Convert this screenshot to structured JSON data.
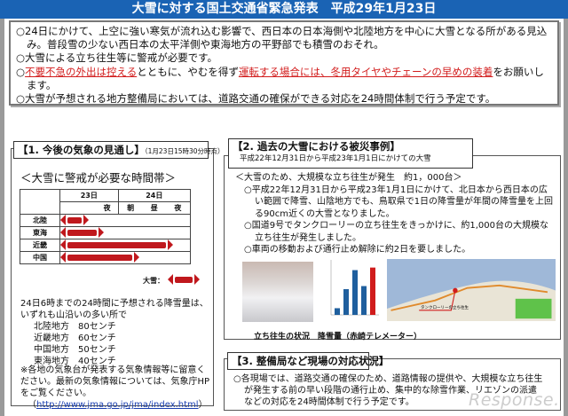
{
  "title": "大雪に対する国土交通省緊急発表　平成29年1月23日",
  "notice": {
    "p1": "○24日にかけて、上空に強い寒気が流れ込む影響で、西日本の日本海側や北陸地方を中心に大雪となる所がある見込み。普段雪の少ない西日本の太平洋側や東海地方の平野部でも積雪のおそれ。",
    "p2": "○大雪による立ち往生等に警戒が必要です。",
    "p3a": "○",
    "p3b": "不要不急の外出は控える",
    "p3c": "とともに、やむを得ず",
    "p3d": "運転する場合には、冬用タイヤやチェーンの早めの装着",
    "p3e": "をお願いします。",
    "p4": "○大雪が予想される地方整備局においては、道路交通の確保ができる対応を24時間体制で行う予定です。"
  },
  "section1": {
    "title": "【1. 今後の気象の見通し】",
    "time": "（1月23日15時30分時点）",
    "heading": "＜大雪に警戒が必要な時間帯＞",
    "table": {
      "day1": "23日",
      "day2": "24日",
      "p_night": "夜",
      "p_morning": "朝",
      "p_noon": "昼",
      "p_night2": "夜",
      "rows": [
        {
          "region": "北陸"
        },
        {
          "region": "東海"
        },
        {
          "region": "近畿"
        },
        {
          "region": "中国"
        }
      ]
    },
    "legend": "大雪：",
    "amount_intro": "24日6時までの24時間に予想される降雪量は、いずれも山沿いの多い所で",
    "amounts": [
      "北陸地方　80センチ",
      "近畿地方　60センチ",
      "中国地方　50センチ",
      "東海地方　40センチ"
    ],
    "note": "※各地の気象台が発表する気象情報等に留意ください。最新の気象情報については、気象庁HPをご覧ください。",
    "link": "http://www.jma.go.jp/jma/index.html",
    "link_open": "（",
    "link_close": "）"
  },
  "section2": {
    "title": "【2. 過去の大雪における被災事例】",
    "subtitle": "平成22年12月31日から平成23年1月1日にかけての大雪",
    "heading": "＜大雪のため、大規模な立ち往生が発生　約1，000台＞",
    "items": [
      "○平成22年12月31日から平成23年1月1日にかけて、北日本から西日本の広い範囲で降雪、山陰地方でも、鳥取県で1日の降雪量が年間の降雪量を上回る90cm近くの大雪となりました。",
      "○国道9号でタンクローリーの立ち往生をきっかけに、約1,000台の大規模な立ち往生が発生しました。",
      "○車両の移動および通行止め解除に約2日を要しました。"
    ],
    "caption_photo": "立ち往生の状況",
    "caption_chart": "降雪量（赤崎テレメーター）",
    "map_label": "タンクローリーの立ち往生",
    "chart_data": {
      "type": "bar",
      "values": [
        13,
        50,
        87,
        56,
        92
      ],
      "ylim": [
        0,
        100
      ],
      "colors": [
        "#1f5f9e",
        "#1f5f9e",
        "#1f5f9e",
        "#1f5f9e",
        "#d01c1c"
      ]
    }
  },
  "section3": {
    "title": "【3. 整備局など現場の対応状況】",
    "body": "○各現場では、道路交通の確保のため、道路情報の提供や、大規模な立ち往生が発生する前の早い段階の通行止め、集中的な除雪作業、リエゾンの派遣などの対応を24時間体制で行う予定です。"
  },
  "watermark": "Response."
}
